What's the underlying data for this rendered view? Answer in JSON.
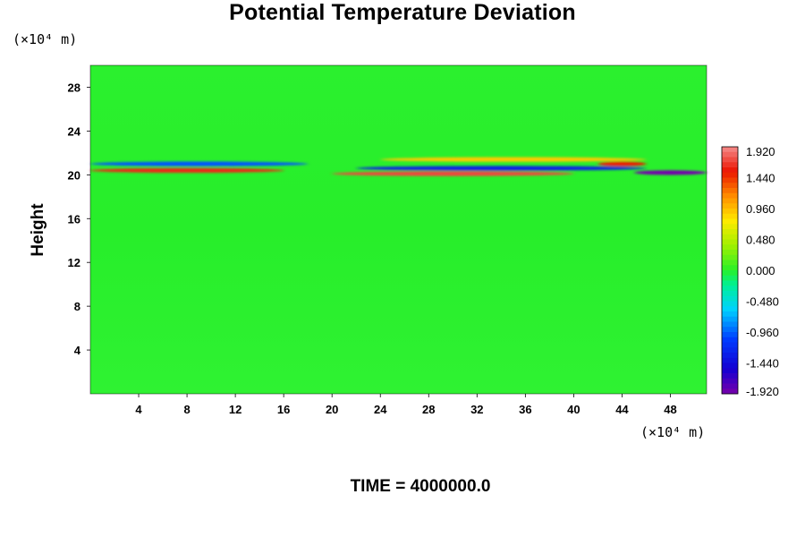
{
  "chart_data": {
    "type": "heatmap",
    "title": "Potential Temperature Deviation",
    "ylabel": "Height",
    "xunit": "(×10⁴ m)",
    "yunit": "(×10⁴ m)",
    "xlim": [
      0,
      51
    ],
    "ylim": [
      0,
      30
    ],
    "xticks": [
      "4",
      "8",
      "12",
      "16",
      "20",
      "24",
      "28",
      "32",
      "36",
      "40",
      "44",
      "48"
    ],
    "yticks": [
      "4",
      "8",
      "12",
      "16",
      "20",
      "24",
      "28"
    ],
    "colorbar": {
      "min": -1.92,
      "max": 1.92,
      "labels": [
        "1.920",
        "1.440",
        "0.960",
        "0.480",
        "0.000",
        "-0.480",
        "-0.960",
        "-1.440",
        "-1.920"
      ]
    },
    "features": [
      {
        "x": [
          0,
          16
        ],
        "y": 20.4,
        "value": 1.6
      },
      {
        "x": [
          0,
          18
        ],
        "y": 21.0,
        "value": -1.0
      },
      {
        "x": [
          20,
          40
        ],
        "y": 20.1,
        "value": 1.7
      },
      {
        "x": [
          22,
          46
        ],
        "y": 20.6,
        "value": -1.3
      },
      {
        "x": [
          24,
          46
        ],
        "y": 21.4,
        "value": 0.9
      },
      {
        "x": [
          42,
          46
        ],
        "y": 21.0,
        "value": 1.5
      },
      {
        "x": [
          45,
          51
        ],
        "y": 20.2,
        "value": -1.9
      }
    ],
    "footer": "TIME = 4000000.0"
  }
}
